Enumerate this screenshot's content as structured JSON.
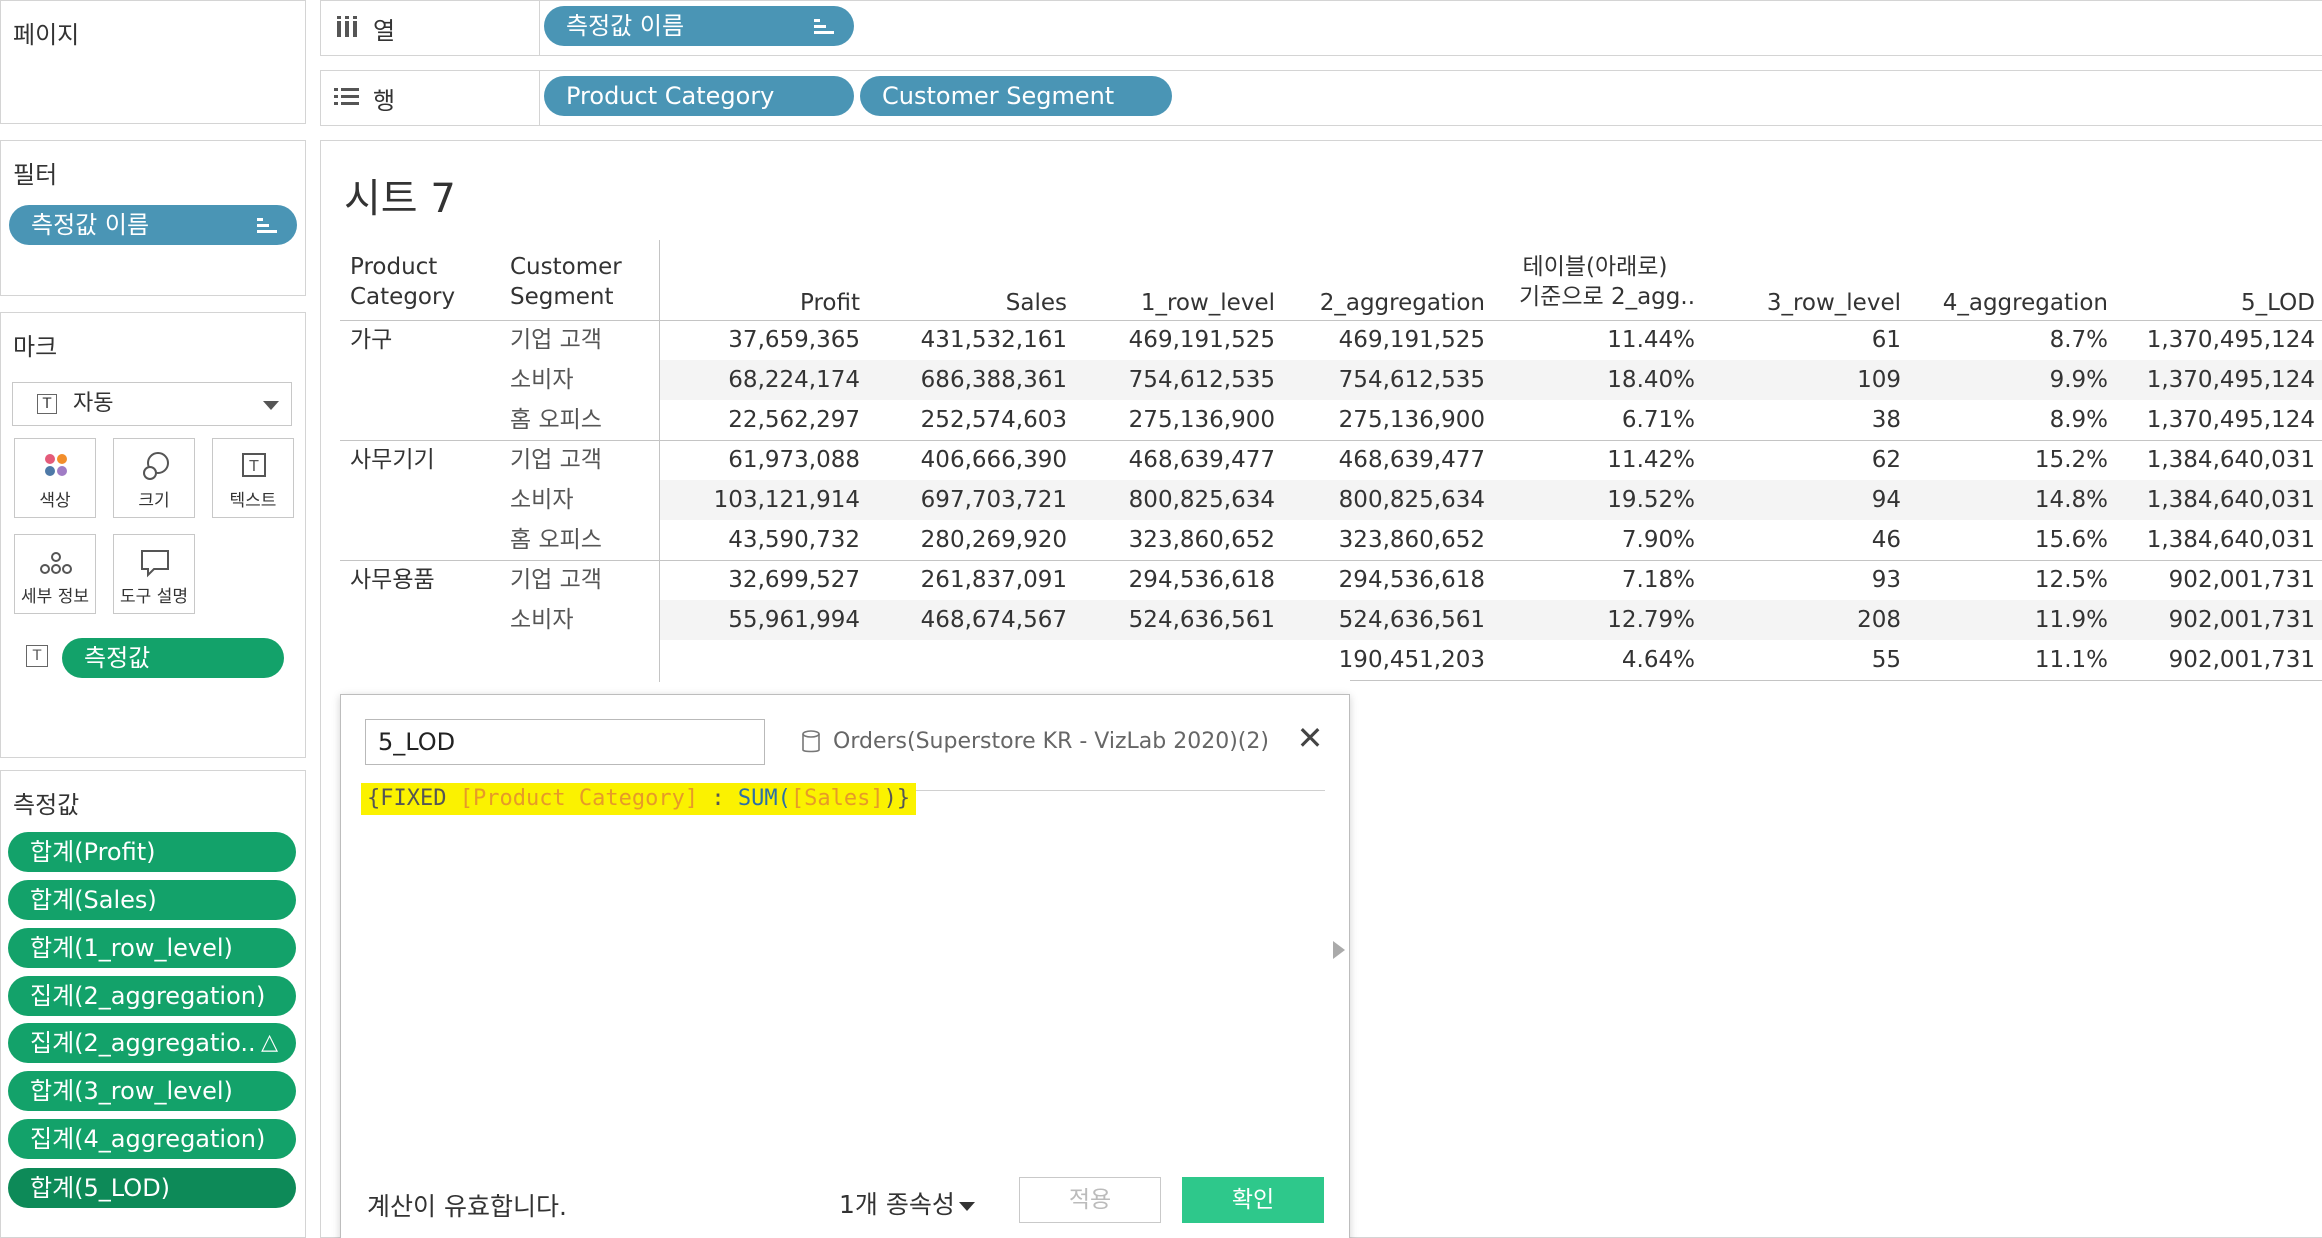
{
  "left_panels": {
    "pages": {
      "title": "페이지"
    },
    "filters": {
      "title": "필터",
      "pill": "측정값 이름"
    },
    "marks": {
      "title": "마크",
      "mark_type": "자동",
      "buttons": {
        "color": "색상",
        "size": "크기",
        "text": "텍스트",
        "detail": "세부 정보",
        "tooltip": "도구 설명"
      },
      "text_pill": "측정값"
    },
    "measure_values": {
      "title": "측정값",
      "items": [
        "합계(Profit)",
        "합계(Sales)",
        "합계(1_row_level)",
        "집계(2_aggregation)",
        "집계(2_aggregatio..",
        "합계(3_row_level)",
        "집계(4_aggregation)",
        "합계(5_LOD)"
      ],
      "delta_symbol": "△"
    }
  },
  "shelves": {
    "columns": {
      "label": "열",
      "pills": [
        "측정값 이름"
      ]
    },
    "rows": {
      "label": "행",
      "pills": [
        "Product Category",
        "Customer Segment"
      ]
    }
  },
  "view": {
    "sheet_title": "시트 7",
    "headers": {
      "product_category": [
        "Product",
        "Category"
      ],
      "customer_segment": [
        "Customer",
        "Segment"
      ],
      "measures": [
        "Profit",
        "Sales",
        "1_row_level",
        "2_aggregation",
        "테이블(아래로)",
        "기준으로 2_agg..",
        "3_row_level",
        "4_aggregation",
        "5_LOD"
      ]
    },
    "groups": [
      {
        "category": "가구",
        "rows": [
          {
            "segment": "기업 고객",
            "values": [
              "37,659,365",
              "431,532,161",
              "469,191,525",
              "469,191,525",
              "11.44%",
              "61",
              "8.7%",
              "1,370,495,124"
            ]
          },
          {
            "segment": "소비자",
            "values": [
              "68,224,174",
              "686,388,361",
              "754,612,535",
              "754,612,535",
              "18.40%",
              "109",
              "9.9%",
              "1,370,495,124"
            ]
          },
          {
            "segment": "홈 오피스",
            "values": [
              "22,562,297",
              "252,574,603",
              "275,136,900",
              "275,136,900",
              "6.71%",
              "38",
              "8.9%",
              "1,370,495,124"
            ]
          }
        ]
      },
      {
        "category": "사무기기",
        "rows": [
          {
            "segment": "기업 고객",
            "values": [
              "61,973,088",
              "406,666,390",
              "468,639,477",
              "468,639,477",
              "11.42%",
              "62",
              "15.2%",
              "1,384,640,031"
            ]
          },
          {
            "segment": "소비자",
            "values": [
              "103,121,914",
              "697,703,721",
              "800,825,634",
              "800,825,634",
              "19.52%",
              "94",
              "14.8%",
              "1,384,640,031"
            ]
          },
          {
            "segment": "홈 오피스",
            "values": [
              "43,590,732",
              "280,269,920",
              "323,860,652",
              "323,860,652",
              "7.90%",
              "46",
              "15.6%",
              "1,384,640,031"
            ]
          }
        ]
      },
      {
        "category": "사무용품",
        "rows": [
          {
            "segment": "기업 고객",
            "values": [
              "32,699,527",
              "261,837,091",
              "294,536,618",
              "294,536,618",
              "7.18%",
              "93",
              "12.5%",
              "902,001,731"
            ]
          },
          {
            "segment": "소비자",
            "values": [
              "55,961,994",
              "468,674,567",
              "524,636,561",
              "524,636,561",
              "12.79%",
              "208",
              "11.9%",
              "902,001,731"
            ]
          },
          {
            "segment": "",
            "values": [
              "",
              "",
              "",
              "190,451,203",
              "4.64%",
              "55",
              "11.1%",
              "902,001,731"
            ]
          }
        ]
      }
    ]
  },
  "calc_dialog": {
    "name": "5_LOD",
    "datasource": "Orders(Superstore KR - VizLab 2020)(2)",
    "formula": {
      "open": "{FIXED ",
      "field1": "[Product Category]",
      "sep": " : ",
      "fn": "SUM(",
      "field2": "[Sales]",
      "close": ")}"
    },
    "status": "계산이 유효합니다.",
    "dependencies": "1개 종속성",
    "apply": "적용",
    "ok": "확인"
  },
  "colors": {
    "pill_blue": "#4a95b5",
    "pill_green": "#13a26a",
    "highlight": "#fbf200",
    "ok_button": "#2ec88b"
  }
}
